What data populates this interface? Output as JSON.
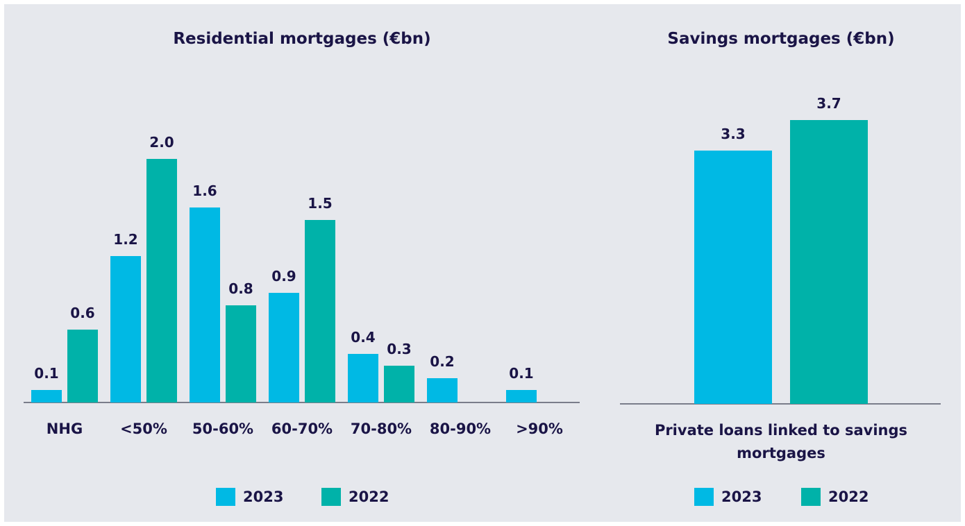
{
  "chart_data": [
    {
      "type": "bar",
      "title": "Residential mortgages (€bn)",
      "categories": [
        "NHG",
        "<50%",
        "50-60%",
        "60-70%",
        "70-80%",
        "80-90%",
        ">90%"
      ],
      "series": [
        {
          "name": "2023",
          "color": "#00b9e4",
          "values": [
            0.1,
            1.2,
            1.6,
            0.9,
            0.4,
            0.2,
            0.1
          ],
          "value_labels": [
            "0.1",
            "1.2",
            "1.6",
            "0.9",
            "0.4",
            "0.2",
            "0.1"
          ]
        },
        {
          "name": "2022",
          "color": "#00b2a9",
          "values": [
            0.6,
            2.0,
            0.8,
            1.5,
            0.3,
            null,
            null
          ],
          "value_labels": [
            "0.6",
            "2.0",
            "0.8",
            "1.5",
            "0.3",
            null,
            null
          ]
        }
      ],
      "ylim": [
        0,
        2.2
      ],
      "legend": "bottom"
    },
    {
      "type": "bar",
      "title": "Savings mortgages (€bn)",
      "categories": [
        "Private loans linked to savings mortgages"
      ],
      "series": [
        {
          "name": "2023",
          "color": "#00b9e4",
          "values": [
            3.3
          ],
          "value_labels": [
            "3.3"
          ]
        },
        {
          "name": "2022",
          "color": "#00b2a9",
          "values": [
            3.7
          ],
          "value_labels": [
            "3.7"
          ]
        }
      ],
      "ylim": [
        0,
        3.7
      ],
      "legend": "bottom"
    }
  ]
}
